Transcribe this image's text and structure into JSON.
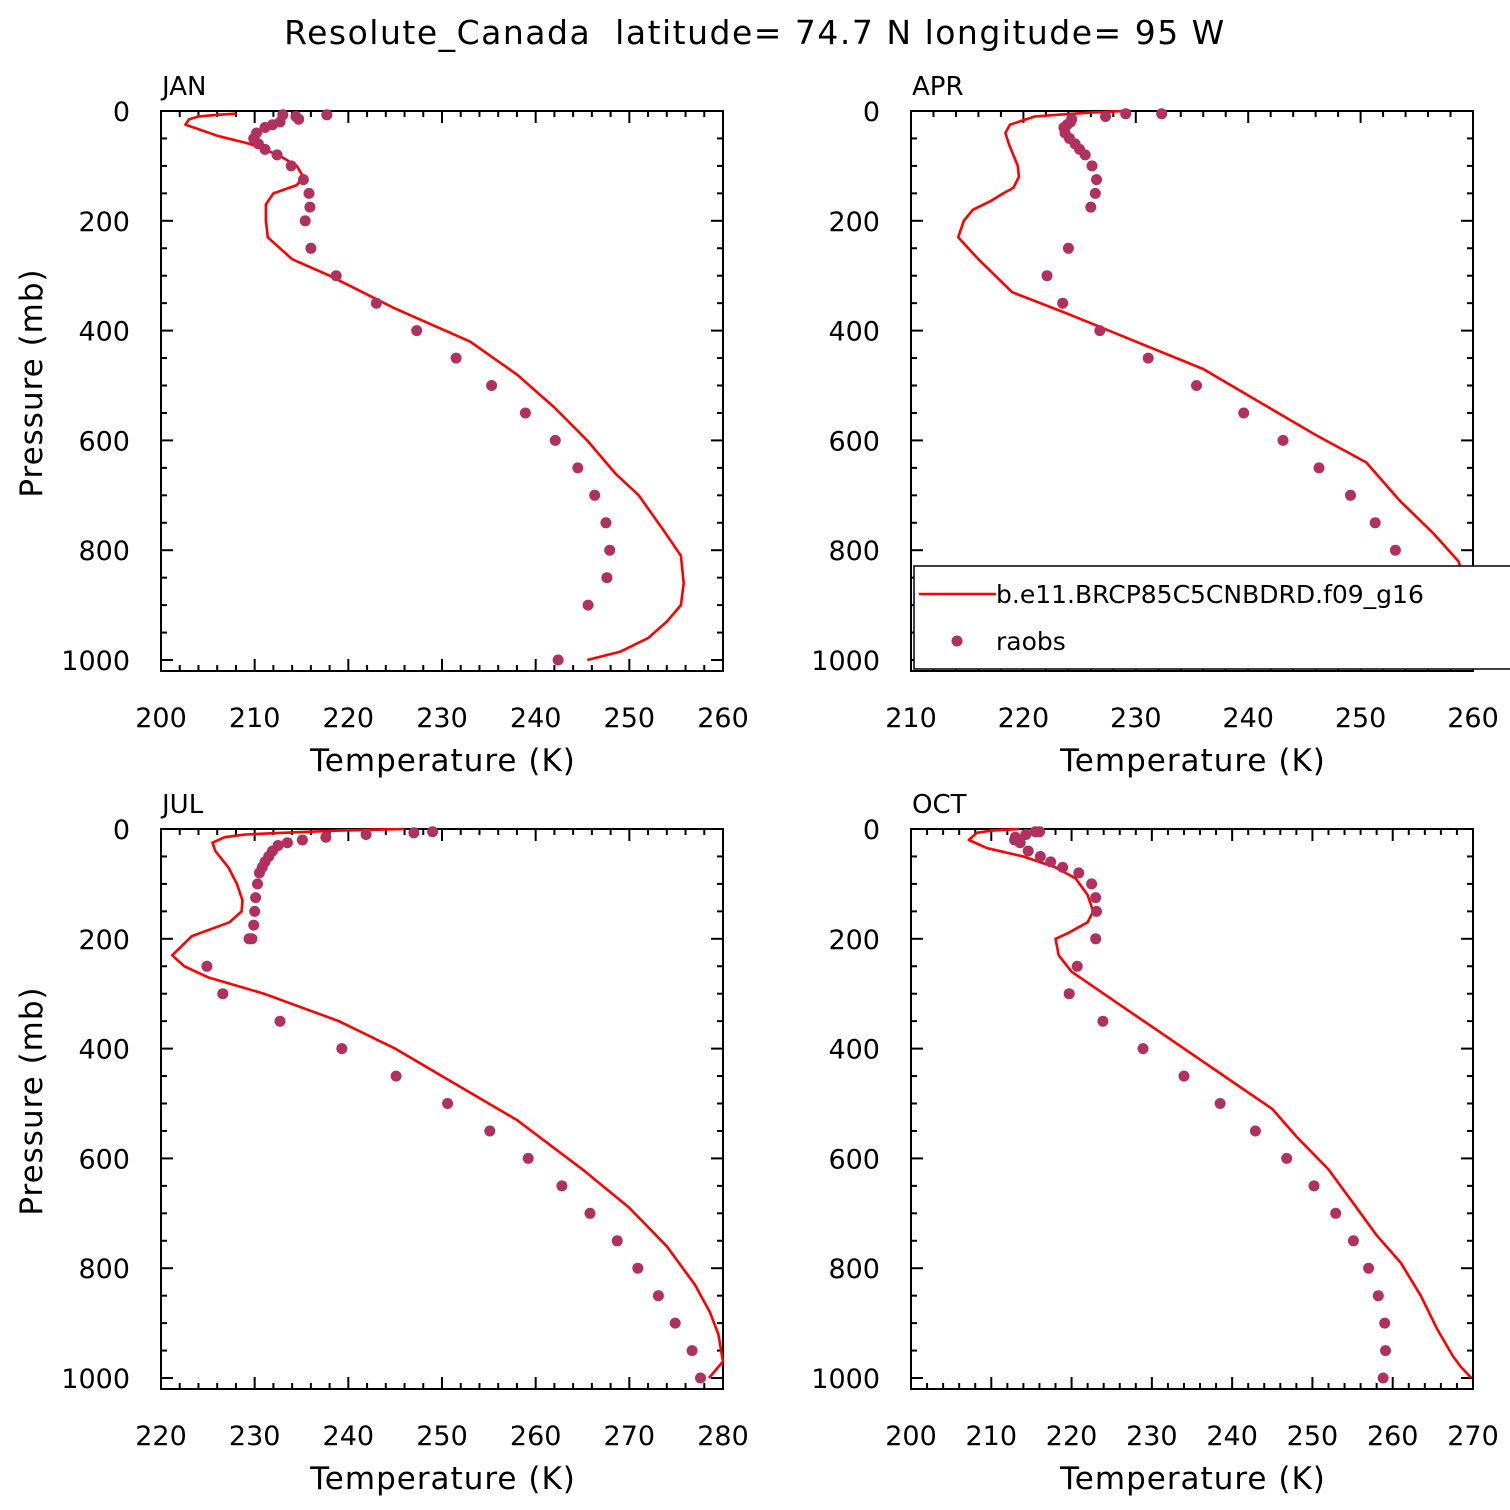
{
  "title": "Resolute_Canada  latitude= 74.7 N longitude= 95 W",
  "colors": {
    "model": "#ff0000",
    "obs": "#b03060",
    "axis": "#000000"
  },
  "chart_data": [
    {
      "type": "line",
      "panel": "JAN",
      "xlabel": "Temperature (K)",
      "ylabel": "Pressure (mb)",
      "xlim": [
        200,
        260
      ],
      "ylim": [
        1020,
        0
      ],
      "xticks": [
        "200",
        "210",
        "220",
        "230",
        "240",
        "250",
        "260"
      ],
      "yticks": [
        "0",
        "200",
        "400",
        "600",
        "800",
        "1000"
      ],
      "series": [
        {
          "name": "b.e11.BRCP85C5CNBDRD.f09_g16",
          "style": "line",
          "x": [
            208,
            206,
            204,
            203,
            202.6,
            203.5,
            206,
            209.5,
            212.5,
            214.5,
            215.2,
            214.5,
            212,
            211.2,
            211.2,
            211.4,
            214,
            218,
            225,
            233,
            238,
            242,
            245.5,
            248.5,
            251,
            253.5,
            255.5,
            255.8,
            255.5,
            254,
            252,
            249,
            245.5
          ],
          "y": [
            5,
            7,
            10,
            15,
            25,
            30,
            45,
            60,
            80,
            100,
            120,
            135,
            150,
            170,
            200,
            230,
            270,
            300,
            360,
            420,
            480,
            540,
            600,
            660,
            700,
            760,
            810,
            860,
            900,
            930,
            960,
            985,
            1000
          ]
        },
        {
          "name": "raobs",
          "style": "points",
          "x": [
            217.7,
            214.4,
            214.7,
            213,
            212.7,
            211.9,
            211.1,
            210.2,
            209.9,
            210.4,
            211.1,
            212.4,
            213.9,
            215.2,
            215.8,
            215.9,
            215.4,
            216,
            218.7,
            223,
            227.3,
            231.5,
            235.3,
            238.9,
            242.1,
            244.5,
            246.3,
            247.5,
            247.9,
            247.6,
            245.6,
            242.4
          ],
          "y": [
            7,
            10,
            15,
            7,
            20,
            25,
            30,
            40,
            50,
            60,
            70,
            80,
            100,
            125,
            150,
            175,
            200,
            250,
            300,
            350,
            400,
            450,
            500,
            550,
            600,
            650,
            700,
            750,
            800,
            850,
            900,
            1000
          ]
        }
      ]
    },
    {
      "type": "line",
      "panel": "APR",
      "xlabel": "Temperature (K)",
      "ylabel": "",
      "xlim": [
        210,
        260
      ],
      "ylim": [
        1020,
        0
      ],
      "xticks": [
        "210",
        "220",
        "230",
        "240",
        "250",
        "260"
      ],
      "yticks": [
        "0",
        "200",
        "400",
        "600",
        "800",
        "1000"
      ],
      "series": [
        {
          "name": "b.e11.BRCP85C5CNBDRD.f09_g16",
          "style": "line",
          "x": [
            229,
            226,
            223,
            221,
            218.8,
            218.4,
            218.7,
            219.5,
            219.6,
            219.1,
            218.2,
            217,
            215.5,
            214.7,
            214.2,
            216,
            219,
            224,
            230,
            236,
            241,
            246,
            250.5,
            253.5,
            256.5,
            258.7,
            259.7,
            259.6,
            258.5,
            256.5,
            254.5,
            253.2
          ],
          "y": [
            0,
            3,
            7,
            10,
            25,
            40,
            60,
            100,
            120,
            140,
            150,
            165,
            180,
            200,
            230,
            270,
            330,
            370,
            420,
            470,
            530,
            590,
            640,
            710,
            770,
            820,
            880,
            920,
            950,
            980,
            995,
            1005
          ]
        },
        {
          "name": "raobs",
          "style": "points",
          "x": [
            232.3,
            229.1,
            227.3,
            224.3,
            224.2,
            223.9,
            223.6,
            223.7,
            224.1,
            224.6,
            225,
            225.5,
            226.1,
            226.5,
            226.4,
            226,
            224,
            222.1,
            223.5,
            226.8,
            231.1,
            235.4,
            239.6,
            243.1,
            246.3,
            249.1,
            251.3,
            253.1,
            254.1,
            254.3,
            253.4,
            251.1
          ],
          "y": [
            5,
            5,
            10,
            15,
            20,
            25,
            30,
            40,
            50,
            60,
            70,
            80,
            100,
            125,
            150,
            175,
            250,
            300,
            350,
            400,
            450,
            500,
            550,
            600,
            650,
            700,
            750,
            800,
            850,
            900,
            950,
            1000
          ]
        }
      ]
    },
    {
      "type": "line",
      "panel": "JUL",
      "xlabel": "Temperature (K)",
      "ylabel": "Pressure (mb)",
      "xlim": [
        220,
        280
      ],
      "ylim": [
        1020,
        0
      ],
      "xticks": [
        "220",
        "230",
        "240",
        "250",
        "260",
        "270",
        "280"
      ],
      "yticks": [
        "0",
        "200",
        "400",
        "600",
        "800",
        "1000"
      ],
      "series": [
        {
          "name": "b.e11.BRCP85C5CNBDRD.f09_g16",
          "style": "line",
          "x": [
            246,
            239,
            233,
            229,
            226.8,
            225.5,
            225.8,
            227.2,
            228.1,
            228.7,
            228.6,
            227.3,
            223.3,
            221.2,
            222.5,
            225,
            231,
            239,
            245,
            250,
            258,
            265,
            270,
            274,
            277,
            278.6,
            279.5,
            280,
            278.5
          ],
          "y": [
            0,
            3,
            7,
            10,
            15,
            25,
            40,
            70,
            100,
            130,
            150,
            170,
            195,
            230,
            250,
            270,
            300,
            350,
            400,
            450,
            530,
            620,
            690,
            760,
            830,
            880,
            920,
            970,
            1000
          ]
        },
        {
          "name": "raobs",
          "style": "points",
          "x": [
            249,
            247,
            241.9,
            237.6,
            235.1,
            233.5,
            232.5,
            231.9,
            231.5,
            231.1,
            230.8,
            230.5,
            230.3,
            230.1,
            230,
            229.9,
            229.7,
            229.4,
            224.9,
            226.6,
            232.7,
            239.3,
            245.1,
            250.6,
            255.1,
            259.2,
            262.8,
            265.8,
            268.7,
            270.9,
            273.1,
            274.9,
            276.7,
            277.6
          ],
          "y": [
            5,
            7,
            10,
            15,
            20,
            25,
            30,
            40,
            50,
            60,
            70,
            80,
            100,
            125,
            150,
            175,
            200,
            200,
            250,
            300,
            350,
            400,
            450,
            500,
            550,
            600,
            650,
            700,
            750,
            800,
            850,
            900,
            950,
            1000
          ]
        }
      ]
    },
    {
      "type": "line",
      "panel": "OCT",
      "xlabel": "Temperature (K)",
      "ylabel": "",
      "xlim": [
        200,
        270
      ],
      "ylim": [
        1020,
        0
      ],
      "xticks": [
        "200",
        "210",
        "220",
        "230",
        "240",
        "250",
        "260",
        "270"
      ],
      "yticks": [
        "0",
        "200",
        "400",
        "600",
        "800",
        "1000"
      ],
      "series": [
        {
          "name": "b.e11.BRCP85C5CNBDRD.f09_g16",
          "style": "line",
          "x": [
            213.5,
            210,
            208.2,
            207.2,
            209.5,
            214,
            218,
            220.5,
            222,
            222.7,
            222,
            219.5,
            218,
            218.4,
            220,
            222,
            226,
            231,
            235,
            240,
            245,
            248,
            252,
            255,
            258,
            261,
            263.5,
            265.5,
            267.5,
            268.5,
            269.8
          ],
          "y": [
            0,
            3,
            7,
            20,
            35,
            50,
            70,
            90,
            120,
            150,
            170,
            190,
            200,
            230,
            260,
            280,
            320,
            370,
            410,
            460,
            510,
            560,
            620,
            680,
            740,
            790,
            850,
            910,
            960,
            980,
            1000
          ]
        },
        {
          "name": "raobs",
          "style": "points",
          "x": [
            216,
            215.5,
            214.3,
            213,
            212.9,
            213.6,
            214.6,
            216.1,
            217.4,
            218.9,
            220.9,
            222.5,
            223,
            223.1,
            223,
            220.7,
            219.7,
            223.9,
            228.9,
            234,
            238.5,
            242.9,
            246.8,
            250.2,
            252.9,
            255.1,
            257,
            258.2,
            259,
            259.1,
            258.8
          ],
          "y": [
            5,
            5,
            10,
            15,
            20,
            25,
            40,
            50,
            60,
            70,
            80,
            100,
            125,
            150,
            200,
            250,
            300,
            350,
            400,
            450,
            500,
            550,
            600,
            650,
            700,
            750,
            800,
            850,
            900,
            950,
            1000
          ]
        }
      ]
    }
  ]
}
